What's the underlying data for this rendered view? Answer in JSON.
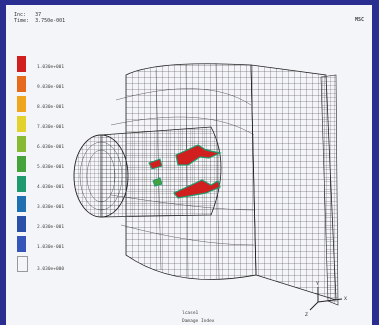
{
  "header": {
    "inc_label": "Inc:",
    "inc_value": "37",
    "time_label": "Time:",
    "time_value": "3.750e-001"
  },
  "logo": "MSC",
  "legend": {
    "colors": [
      "#d11f1f",
      "#e66a1e",
      "#f0a51e",
      "#e3d12e",
      "#88b934",
      "#46a23a",
      "#1f9a6e",
      "#1f6fb1",
      "#2a4fa8",
      "#3555b8",
      "#f4f5f8"
    ],
    "ticks": [
      "1.030e+001",
      "9.030e-001",
      "8.030e-001",
      "7.030e-001",
      "6.030e-001",
      "5.030e-001",
      "4.030e-001",
      "3.030e-001",
      "2.030e-001",
      "1.030e-001",
      "3.030e+000"
    ]
  },
  "bottom": {
    "line1": "lcase1",
    "line2": "Damage Index"
  },
  "triad": {
    "x_label": "X",
    "y_label": "Y",
    "z_label": "Z"
  }
}
